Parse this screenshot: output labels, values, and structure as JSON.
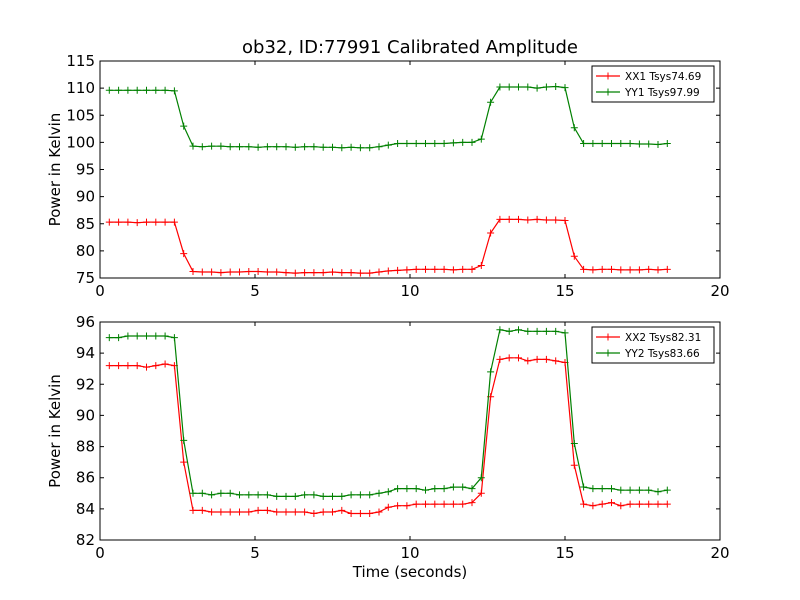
{
  "figure": {
    "title": "ob32, ID:77991 Calibrated Amplitude"
  },
  "chart_data": [
    {
      "type": "line",
      "title": "ob32, ID:77991 Calibrated Amplitude",
      "xlabel": "",
      "ylabel": "Power in Kelvin",
      "xlim": [
        0,
        20
      ],
      "ylim": [
        75,
        115
      ],
      "xticks": [
        0,
        5,
        10,
        15,
        20
      ],
      "yticks": [
        75,
        80,
        85,
        90,
        95,
        100,
        105,
        110,
        115
      ],
      "grid": false,
      "legend_position": "top-right",
      "x": [
        0.3,
        0.6,
        0.9,
        1.2,
        1.5,
        1.8,
        2.1,
        2.4,
        2.7,
        3.0,
        3.3,
        3.6,
        3.9,
        4.2,
        4.5,
        4.8,
        5.1,
        5.4,
        5.7,
        6.0,
        6.3,
        6.6,
        6.9,
        7.2,
        7.5,
        7.8,
        8.1,
        8.4,
        8.7,
        9.0,
        9.3,
        9.6,
        9.9,
        10.2,
        10.5,
        10.8,
        11.1,
        11.4,
        11.7,
        12.0,
        12.3,
        12.6,
        12.9,
        13.2,
        13.5,
        13.8,
        14.1,
        14.4,
        14.7,
        15.0,
        15.3,
        15.6,
        15.9,
        16.2,
        16.5,
        16.8,
        17.1,
        17.4,
        17.7,
        18.0,
        18.3
      ],
      "series": [
        {
          "name": "XX1 Tsys74.69",
          "color": "#ff0000",
          "values": [
            85.3,
            85.3,
            85.3,
            85.2,
            85.3,
            85.3,
            85.3,
            85.3,
            79.5,
            76.2,
            76.1,
            76.1,
            76.0,
            76.1,
            76.1,
            76.2,
            76.2,
            76.1,
            76.1,
            76.0,
            75.9,
            76.0,
            76.0,
            76.0,
            76.1,
            76.0,
            76.0,
            75.9,
            75.9,
            76.1,
            76.3,
            76.4,
            76.5,
            76.6,
            76.6,
            76.6,
            76.6,
            76.5,
            76.6,
            76.6,
            77.3,
            83.3,
            85.8,
            85.8,
            85.8,
            85.7,
            85.8,
            85.7,
            85.7,
            85.6,
            79.0,
            76.6,
            76.5,
            76.6,
            76.6,
            76.5,
            76.5,
            76.5,
            76.6,
            76.5,
            76.6
          ]
        },
        {
          "name": "YY1 Tsys97.99",
          "color": "#008000",
          "values": [
            109.6,
            109.6,
            109.6,
            109.6,
            109.6,
            109.6,
            109.6,
            109.5,
            103.0,
            99.3,
            99.2,
            99.3,
            99.3,
            99.2,
            99.2,
            99.2,
            99.1,
            99.2,
            99.2,
            99.2,
            99.1,
            99.2,
            99.2,
            99.1,
            99.1,
            99.0,
            99.1,
            99.0,
            99.0,
            99.2,
            99.5,
            99.8,
            99.8,
            99.8,
            99.8,
            99.8,
            99.8,
            99.9,
            100.0,
            100.0,
            100.6,
            107.4,
            110.2,
            110.2,
            110.2,
            110.2,
            110.0,
            110.2,
            110.3,
            110.1,
            102.7,
            99.8,
            99.8,
            99.8,
            99.8,
            99.8,
            99.8,
            99.7,
            99.7,
            99.6,
            99.8
          ]
        }
      ]
    },
    {
      "type": "line",
      "title": "",
      "xlabel": "Time (seconds)",
      "ylabel": "Power in Kelvin",
      "xlim": [
        0,
        20
      ],
      "ylim": [
        82,
        96
      ],
      "xticks": [
        0,
        5,
        10,
        15,
        20
      ],
      "yticks": [
        82,
        84,
        86,
        88,
        90,
        92,
        94,
        96
      ],
      "grid": false,
      "legend_position": "top-right",
      "x": [
        0.3,
        0.6,
        0.9,
        1.2,
        1.5,
        1.8,
        2.1,
        2.4,
        2.7,
        3.0,
        3.3,
        3.6,
        3.9,
        4.2,
        4.5,
        4.8,
        5.1,
        5.4,
        5.7,
        6.0,
        6.3,
        6.6,
        6.9,
        7.2,
        7.5,
        7.8,
        8.1,
        8.4,
        8.7,
        9.0,
        9.3,
        9.6,
        9.9,
        10.2,
        10.5,
        10.8,
        11.1,
        11.4,
        11.7,
        12.0,
        12.3,
        12.6,
        12.9,
        13.2,
        13.5,
        13.8,
        14.1,
        14.4,
        14.7,
        15.0,
        15.3,
        15.6,
        15.9,
        16.2,
        16.5,
        16.8,
        17.1,
        17.4,
        17.7,
        18.0,
        18.3
      ],
      "series": [
        {
          "name": "XX2 Tsys82.31",
          "color": "#ff0000",
          "values": [
            93.2,
            93.2,
            93.2,
            93.2,
            93.1,
            93.2,
            93.3,
            93.2,
            87.0,
            83.9,
            83.9,
            83.8,
            83.8,
            83.8,
            83.8,
            83.8,
            83.9,
            83.9,
            83.8,
            83.8,
            83.8,
            83.8,
            83.7,
            83.8,
            83.8,
            83.9,
            83.7,
            83.7,
            83.7,
            83.8,
            84.1,
            84.2,
            84.2,
            84.3,
            84.3,
            84.3,
            84.3,
            84.3,
            84.3,
            84.4,
            85.0,
            91.2,
            93.6,
            93.7,
            93.7,
            93.5,
            93.6,
            93.6,
            93.5,
            93.4,
            86.8,
            84.3,
            84.2,
            84.3,
            84.4,
            84.2,
            84.3,
            84.3,
            84.3,
            84.3,
            84.3
          ]
        },
        {
          "name": "YY2 Tsys83.66",
          "color": "#008000",
          "values": [
            95.0,
            95.0,
            95.1,
            95.1,
            95.1,
            95.1,
            95.1,
            95.0,
            88.4,
            85.0,
            85.0,
            84.9,
            85.0,
            85.0,
            84.9,
            84.9,
            84.9,
            84.9,
            84.8,
            84.8,
            84.8,
            84.9,
            84.9,
            84.8,
            84.8,
            84.8,
            84.9,
            84.9,
            84.9,
            85.0,
            85.1,
            85.3,
            85.3,
            85.3,
            85.2,
            85.3,
            85.3,
            85.4,
            85.4,
            85.3,
            86.0,
            92.8,
            95.5,
            95.4,
            95.5,
            95.4,
            95.4,
            95.4,
            95.4,
            95.3,
            88.2,
            85.4,
            85.3,
            85.3,
            85.3,
            85.2,
            85.2,
            85.2,
            85.2,
            85.1,
            85.2
          ]
        }
      ]
    }
  ]
}
